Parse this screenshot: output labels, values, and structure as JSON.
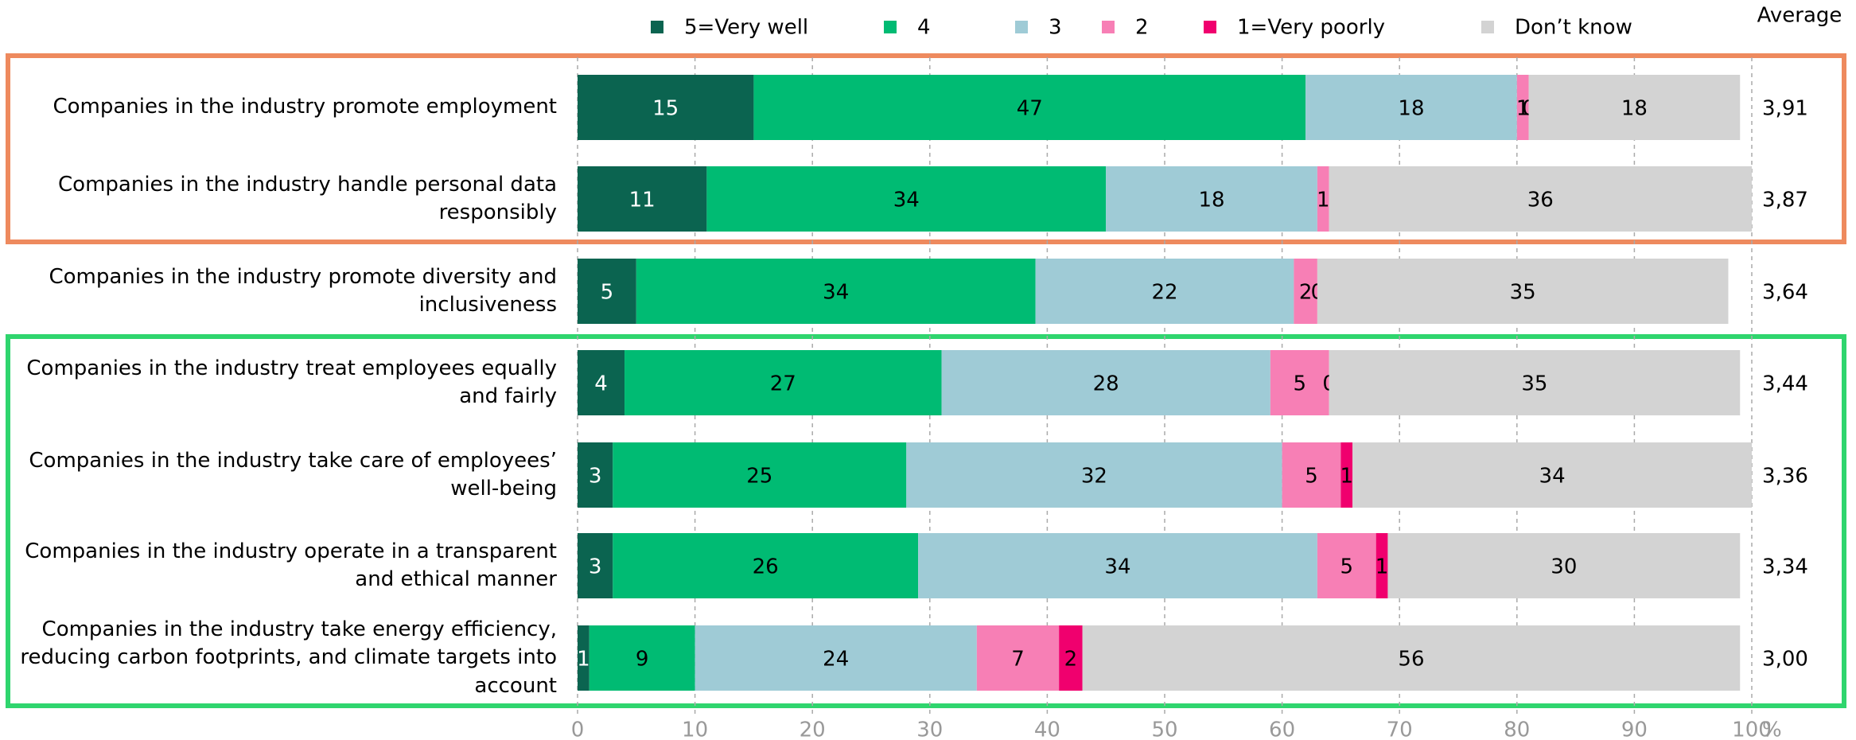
{
  "chart_data": {
    "type": "stacked-bar-horizontal",
    "categories": [
      "Companies in the industry promote employment",
      "Companies in the industry handle personal data responsibly",
      "Companies in the industry promote diversity and inclusiveness",
      "Companies in the industry treat employees equally and fairly",
      "Companies in the industry take care of employees’ well-being",
      "Companies in the industry operate in a transparent and ethical manner",
      "Companies in the industry take energy efficiency, reducing carbon footprints, and climate targets into account"
    ],
    "series": [
      {
        "name": "5=Very well",
        "color": "#0b6450",
        "label_color": "#ffffff",
        "values": [
          15,
          11,
          5,
          4,
          3,
          3,
          1
        ]
      },
      {
        "name": "4",
        "color": "#00bb73",
        "label_color": "#000000",
        "values": [
          47,
          34,
          34,
          27,
          25,
          26,
          9
        ]
      },
      {
        "name": "3",
        "color": "#9fcbd6",
        "label_color": "#000000",
        "values": [
          18,
          18,
          22,
          28,
          32,
          34,
          24
        ]
      },
      {
        "name": "2",
        "color": "#f77fb5",
        "label_color": "#000000",
        "values": [
          1,
          1,
          2,
          5,
          5,
          5,
          7
        ]
      },
      {
        "name": "1=Very poorly",
        "color": "#f0006e",
        "label_color": "#000000",
        "values": [
          0,
          0,
          0,
          0,
          1,
          1,
          2
        ],
        "value_labels": [
          "0",
          null,
          "0",
          "0",
          "1",
          "1",
          "2"
        ]
      },
      {
        "name": "Don’t know",
        "color": "#d3d3d3",
        "label_color": "#000000",
        "values": [
          18,
          36,
          35,
          35,
          34,
          30,
          56
        ]
      }
    ],
    "average_header": "Average",
    "averages": [
      "3,91",
      "3,87",
      "3,64",
      "3,44",
      "3,36",
      "3,34",
      "3,00"
    ],
    "xlim": [
      0,
      100
    ],
    "xticks": [
      0,
      10,
      20,
      30,
      40,
      50,
      60,
      70,
      80,
      90,
      100
    ],
    "x_unit": "%",
    "grid": true
  }
}
